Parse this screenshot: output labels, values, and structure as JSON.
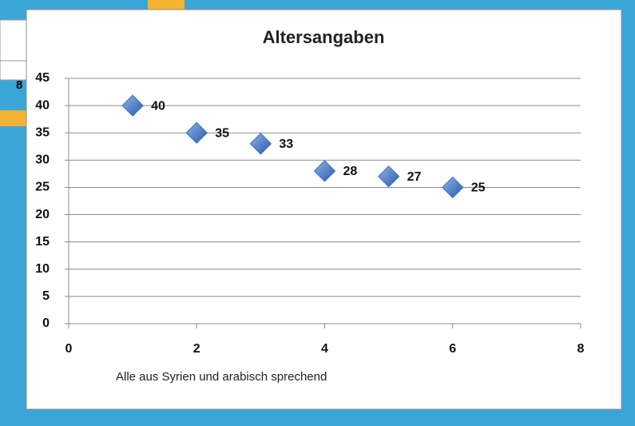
{
  "background_label": "8",
  "chart_data": {
    "type": "scatter",
    "title": "Altersangaben",
    "x_label": "Alle aus Syrien und arabisch sprechend",
    "x": [
      1,
      2,
      3,
      4,
      5,
      6
    ],
    "values": [
      40,
      35,
      33,
      28,
      27,
      25
    ],
    "color": "#3d6fc0",
    "xlim": [
      0,
      8
    ],
    "xticks": [
      0,
      2,
      4,
      6,
      8
    ],
    "ylim": [
      0,
      45
    ],
    "yticks": [
      0,
      5,
      10,
      15,
      20,
      25,
      30,
      35,
      40,
      45
    ],
    "grid": true
  }
}
